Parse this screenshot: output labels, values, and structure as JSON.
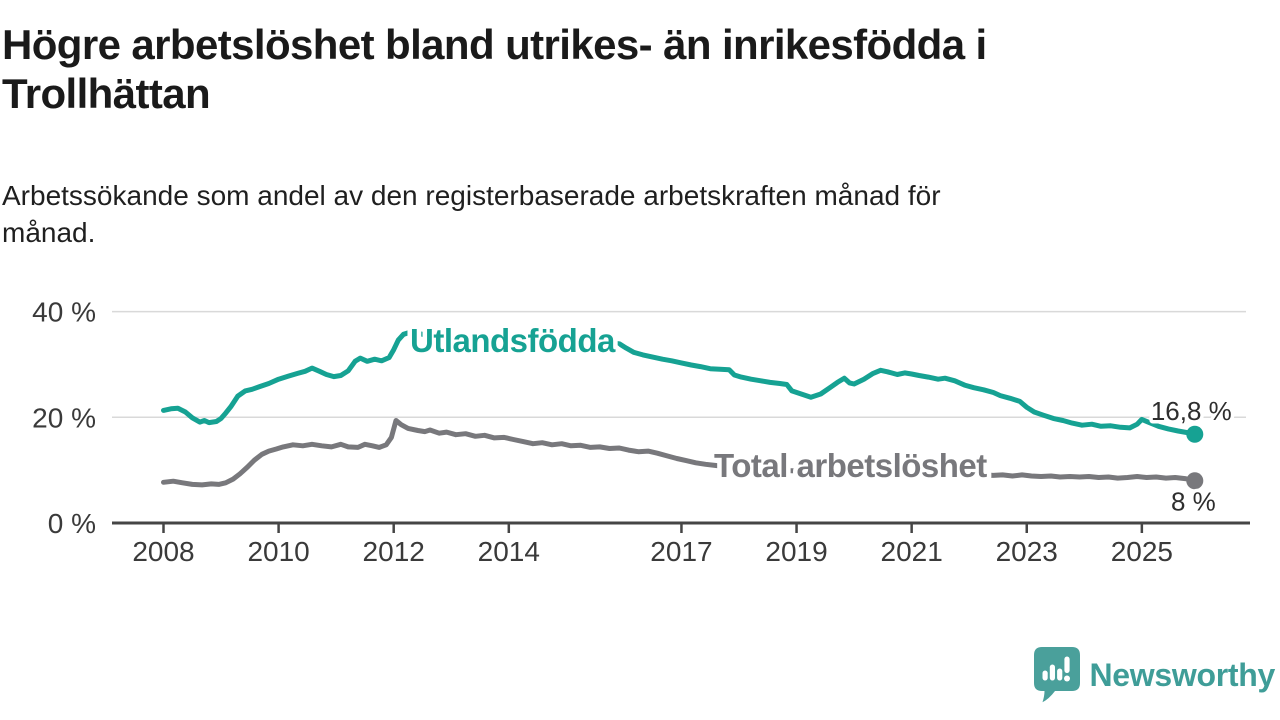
{
  "header": {
    "title": "Högre arbetslöshet bland utrikes- än inrikesfödda i Trollhättan",
    "title_lines": [
      "Högre arbetslöshet bland utrikes- än inrikesfödda i",
      "Trollhättan"
    ],
    "subtitle": "Arbetssökande som andel av den registerbaserade arbetskraften månad för månad.",
    "subtitle_lines": [
      "Arbetssökande som andel av den registerbaserade arbetskraften månad för",
      "månad."
    ]
  },
  "colors": {
    "background": "#ffffff",
    "title_text": "#1a1a1a",
    "subtitle_text": "#1f1f1f",
    "teal_line": "#16a293",
    "gray_line": "#78787c",
    "grid_line": "#d9d9d9",
    "axis_line": "#454545",
    "tick_label": "#3a3a3a",
    "end_label_text": "#2e2e2e",
    "logo_icon": "#4aa09b",
    "logo_text": "#3f9d98"
  },
  "chart_data": {
    "type": "line",
    "title": "Högre arbetslöshet bland utrikes- än inrikesfödda i Trollhättan",
    "subtitle": "Arbetssökande som andel av den registerbaserade arbetskraften månad för månad.",
    "unit": "%",
    "grid": "horizontal",
    "legend_position": "inline-labels",
    "x_axis": {
      "range": [
        2007.1,
        2026.9
      ],
      "tick_years": [
        2008,
        2010,
        2012,
        2014,
        2017,
        2019,
        2021,
        2023,
        2025
      ],
      "tick_labels": [
        "2008",
        "2010",
        "2012",
        "2014",
        "2017",
        "2019",
        "2021",
        "2023",
        "2025"
      ]
    },
    "y_axis": {
      "range": [
        0,
        42
      ],
      "ticks": [
        {
          "value": 0,
          "label": "0 %"
        },
        {
          "value": 20,
          "label": "20 %"
        },
        {
          "value": 40,
          "label": "40 %"
        }
      ]
    },
    "series": [
      {
        "name": "Utlandsfödda",
        "color": "#16a293",
        "end_value": 16.8,
        "end_label": "16,8 %",
        "points": [
          [
            2008.0,
            21.3
          ],
          [
            2008.13,
            21.6
          ],
          [
            2008.25,
            21.7
          ],
          [
            2008.38,
            21.0
          ],
          [
            2008.5,
            19.9
          ],
          [
            2008.63,
            19.1
          ],
          [
            2008.71,
            19.4
          ],
          [
            2008.79,
            19.0
          ],
          [
            2008.92,
            19.2
          ],
          [
            2009.0,
            19.8
          ],
          [
            2009.08,
            20.8
          ],
          [
            2009.17,
            22.0
          ],
          [
            2009.29,
            24.0
          ],
          [
            2009.42,
            25.0
          ],
          [
            2009.54,
            25.3
          ],
          [
            2009.67,
            25.8
          ],
          [
            2009.83,
            26.4
          ],
          [
            2010.0,
            27.2
          ],
          [
            2010.17,
            27.8
          ],
          [
            2010.33,
            28.3
          ],
          [
            2010.46,
            28.7
          ],
          [
            2010.58,
            29.3
          ],
          [
            2010.71,
            28.7
          ],
          [
            2010.83,
            28.1
          ],
          [
            2010.96,
            27.7
          ],
          [
            2011.08,
            27.9
          ],
          [
            2011.21,
            28.8
          ],
          [
            2011.33,
            30.6
          ],
          [
            2011.42,
            31.2
          ],
          [
            2011.54,
            30.6
          ],
          [
            2011.67,
            31.0
          ],
          [
            2011.79,
            30.7
          ],
          [
            2011.92,
            31.3
          ],
          [
            2012.0,
            32.8
          ],
          [
            2012.08,
            34.6
          ],
          [
            2012.17,
            35.7
          ],
          [
            2012.29,
            36.1
          ],
          [
            2012.46,
            35.8
          ],
          [
            2012.63,
            35.4
          ],
          [
            2012.79,
            34.8
          ],
          [
            2012.96,
            34.9
          ],
          [
            2013.13,
            34.3
          ],
          [
            2013.29,
            34.6
          ],
          [
            2013.46,
            34.0
          ],
          [
            2013.63,
            34.2
          ],
          [
            2013.79,
            33.7
          ],
          [
            2013.96,
            33.9
          ],
          [
            2014.13,
            33.4
          ],
          [
            2014.29,
            32.8
          ],
          [
            2014.46,
            33.1
          ],
          [
            2014.63,
            33.5
          ],
          [
            2014.79,
            33.2
          ],
          [
            2014.96,
            33.7
          ],
          [
            2015.13,
            34.0
          ],
          [
            2015.29,
            34.3
          ],
          [
            2015.46,
            34.1
          ],
          [
            2015.63,
            33.9
          ],
          [
            2015.79,
            34.1
          ],
          [
            2015.92,
            33.9
          ],
          [
            2016.04,
            33.1
          ],
          [
            2016.17,
            32.3
          ],
          [
            2016.33,
            31.8
          ],
          [
            2016.5,
            31.4
          ],
          [
            2016.67,
            31.0
          ],
          [
            2016.83,
            30.7
          ],
          [
            2017.0,
            30.3
          ],
          [
            2017.17,
            29.9
          ],
          [
            2017.33,
            29.6
          ],
          [
            2017.5,
            29.2
          ],
          [
            2017.67,
            29.1
          ],
          [
            2017.83,
            29.0
          ],
          [
            2017.92,
            28.0
          ],
          [
            2018.04,
            27.6
          ],
          [
            2018.21,
            27.2
          ],
          [
            2018.38,
            26.9
          ],
          [
            2018.54,
            26.6
          ],
          [
            2018.71,
            26.4
          ],
          [
            2018.83,
            26.2
          ],
          [
            2018.92,
            25.0
          ],
          [
            2019.08,
            24.4
          ],
          [
            2019.25,
            23.8
          ],
          [
            2019.42,
            24.4
          ],
          [
            2019.58,
            25.6
          ],
          [
            2019.71,
            26.6
          ],
          [
            2019.83,
            27.4
          ],
          [
            2019.92,
            26.5
          ],
          [
            2020.0,
            26.3
          ],
          [
            2020.17,
            27.2
          ],
          [
            2020.33,
            28.3
          ],
          [
            2020.46,
            28.9
          ],
          [
            2020.58,
            28.6
          ],
          [
            2020.75,
            28.1
          ],
          [
            2020.88,
            28.4
          ],
          [
            2021.0,
            28.2
          ],
          [
            2021.13,
            27.9
          ],
          [
            2021.29,
            27.6
          ],
          [
            2021.46,
            27.2
          ],
          [
            2021.58,
            27.4
          ],
          [
            2021.75,
            26.9
          ],
          [
            2021.92,
            26.1
          ],
          [
            2022.08,
            25.6
          ],
          [
            2022.25,
            25.2
          ],
          [
            2022.42,
            24.7
          ],
          [
            2022.54,
            24.1
          ],
          [
            2022.71,
            23.6
          ],
          [
            2022.88,
            23.0
          ],
          [
            2023.0,
            21.9
          ],
          [
            2023.13,
            21.0
          ],
          [
            2023.29,
            20.4
          ],
          [
            2023.46,
            19.8
          ],
          [
            2023.63,
            19.4
          ],
          [
            2023.79,
            18.9
          ],
          [
            2023.96,
            18.5
          ],
          [
            2024.13,
            18.7
          ],
          [
            2024.29,
            18.3
          ],
          [
            2024.46,
            18.4
          ],
          [
            2024.63,
            18.1
          ],
          [
            2024.79,
            18.0
          ],
          [
            2024.92,
            18.7
          ],
          [
            2025.0,
            19.6
          ],
          [
            2025.13,
            19.0
          ],
          [
            2025.29,
            18.3
          ],
          [
            2025.46,
            17.8
          ],
          [
            2025.63,
            17.4
          ],
          [
            2025.79,
            17.1
          ],
          [
            2025.92,
            16.8
          ]
        ]
      },
      {
        "name": "Total arbetslöshet",
        "color": "#78787c",
        "end_value": 8.0,
        "end_label": "8 %",
        "points": [
          [
            2008.0,
            7.7
          ],
          [
            2008.17,
            7.9
          ],
          [
            2008.33,
            7.6
          ],
          [
            2008.5,
            7.3
          ],
          [
            2008.67,
            7.2
          ],
          [
            2008.83,
            7.4
          ],
          [
            2008.96,
            7.3
          ],
          [
            2009.08,
            7.6
          ],
          [
            2009.21,
            8.3
          ],
          [
            2009.33,
            9.3
          ],
          [
            2009.46,
            10.6
          ],
          [
            2009.58,
            11.9
          ],
          [
            2009.71,
            13.0
          ],
          [
            2009.83,
            13.6
          ],
          [
            2009.96,
            14.0
          ],
          [
            2010.08,
            14.4
          ],
          [
            2010.25,
            14.8
          ],
          [
            2010.42,
            14.6
          ],
          [
            2010.58,
            14.9
          ],
          [
            2010.75,
            14.6
          ],
          [
            2010.92,
            14.4
          ],
          [
            2011.08,
            14.9
          ],
          [
            2011.21,
            14.4
          ],
          [
            2011.38,
            14.3
          ],
          [
            2011.5,
            14.9
          ],
          [
            2011.63,
            14.6
          ],
          [
            2011.75,
            14.3
          ],
          [
            2011.87,
            14.8
          ],
          [
            2011.96,
            16.2
          ],
          [
            2012.04,
            19.4
          ],
          [
            2012.13,
            18.6
          ],
          [
            2012.25,
            17.9
          ],
          [
            2012.42,
            17.5
          ],
          [
            2012.54,
            17.3
          ],
          [
            2012.63,
            17.6
          ],
          [
            2012.79,
            17.0
          ],
          [
            2012.92,
            17.2
          ],
          [
            2013.08,
            16.7
          ],
          [
            2013.25,
            16.9
          ],
          [
            2013.42,
            16.4
          ],
          [
            2013.58,
            16.6
          ],
          [
            2013.75,
            16.1
          ],
          [
            2013.92,
            16.2
          ],
          [
            2014.08,
            15.8
          ],
          [
            2014.25,
            15.4
          ],
          [
            2014.42,
            15.0
          ],
          [
            2014.58,
            15.2
          ],
          [
            2014.75,
            14.8
          ],
          [
            2014.92,
            15.0
          ],
          [
            2015.08,
            14.6
          ],
          [
            2015.25,
            14.7
          ],
          [
            2015.42,
            14.3
          ],
          [
            2015.58,
            14.4
          ],
          [
            2015.75,
            14.1
          ],
          [
            2015.92,
            14.2
          ],
          [
            2016.08,
            13.8
          ],
          [
            2016.25,
            13.5
          ],
          [
            2016.42,
            13.6
          ],
          [
            2016.58,
            13.2
          ],
          [
            2016.75,
            12.7
          ],
          [
            2016.92,
            12.2
          ],
          [
            2017.08,
            11.8
          ],
          [
            2017.25,
            11.4
          ],
          [
            2017.42,
            11.1
          ],
          [
            2017.58,
            10.9
          ],
          [
            2017.75,
            10.7
          ],
          [
            2017.92,
            10.5
          ],
          [
            2018.17,
            10.3
          ],
          [
            2018.42,
            10.2
          ],
          [
            2018.67,
            10.0
          ],
          [
            2018.92,
            9.9
          ],
          [
            2019.17,
            9.8
          ],
          [
            2019.42,
            9.7
          ],
          [
            2019.67,
            9.8
          ],
          [
            2019.92,
            10.0
          ],
          [
            2020.17,
            10.4
          ],
          [
            2020.42,
            10.7
          ],
          [
            2020.67,
            10.5
          ],
          [
            2020.92,
            10.3
          ],
          [
            2021.17,
            10.1
          ],
          [
            2021.42,
            9.8
          ],
          [
            2021.67,
            9.6
          ],
          [
            2021.92,
            9.3
          ],
          [
            2022.17,
            9.1
          ],
          [
            2022.42,
            9.0
          ],
          [
            2022.58,
            9.1
          ],
          [
            2022.75,
            8.9
          ],
          [
            2022.92,
            9.1
          ],
          [
            2023.08,
            8.9
          ],
          [
            2023.25,
            8.8
          ],
          [
            2023.42,
            8.9
          ],
          [
            2023.58,
            8.7
          ],
          [
            2023.75,
            8.8
          ],
          [
            2023.92,
            8.7
          ],
          [
            2024.08,
            8.8
          ],
          [
            2024.25,
            8.6
          ],
          [
            2024.42,
            8.7
          ],
          [
            2024.58,
            8.5
          ],
          [
            2024.75,
            8.6
          ],
          [
            2024.92,
            8.8
          ],
          [
            2025.08,
            8.6
          ],
          [
            2025.25,
            8.7
          ],
          [
            2025.42,
            8.5
          ],
          [
            2025.58,
            8.6
          ],
          [
            2025.75,
            8.4
          ],
          [
            2025.92,
            8.0
          ]
        ]
      }
    ]
  },
  "footer": {
    "brand": "Newsworthy"
  }
}
